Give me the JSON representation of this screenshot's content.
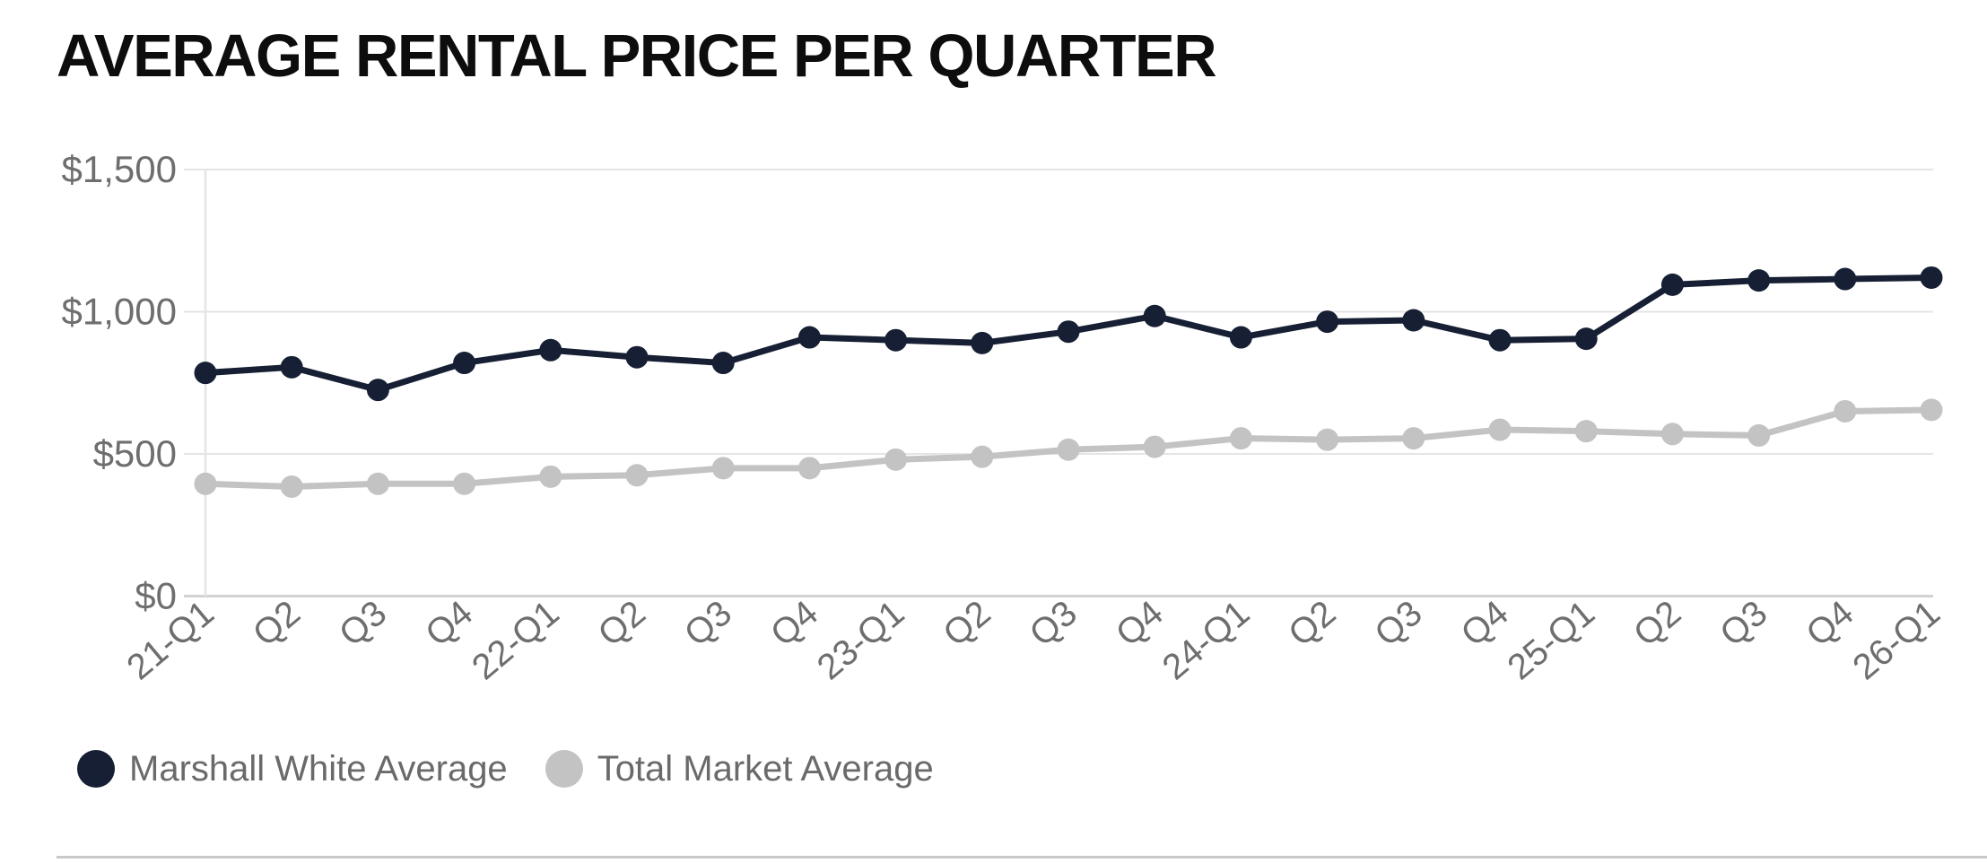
{
  "page": {
    "background": "#ffffff"
  },
  "header": {
    "title": "AVERAGE RENTAL PRICE PER QUARTER"
  },
  "chart_data": {
    "type": "line",
    "title": "AVERAGE RENTAL PRICE PER QUARTER",
    "categories": [
      "21-Q1",
      "Q2",
      "Q3",
      "Q4",
      "22-Q1",
      "Q2",
      "Q3",
      "Q4",
      "23-Q1",
      "Q2",
      "Q3",
      "Q4",
      "24-Q1",
      "Q2",
      "Q3",
      "Q4",
      "25-Q1",
      "Q2",
      "Q3",
      "Q4",
      "26-Q1"
    ],
    "series": [
      {
        "name": "Marshall White Average",
        "color": "#161f33",
        "values": [
          785,
          805,
          725,
          820,
          865,
          840,
          820,
          910,
          900,
          890,
          930,
          985,
          910,
          965,
          970,
          900,
          905,
          1095,
          1110,
          1115,
          1120
        ]
      },
      {
        "name": "Total Market Average",
        "color": "#c3c3c3",
        "values": [
          395,
          385,
          395,
          395,
          420,
          425,
          450,
          450,
          480,
          490,
          515,
          525,
          555,
          550,
          555,
          585,
          580,
          570,
          565,
          650,
          655
        ]
      }
    ],
    "xlabel": "",
    "ylabel": "",
    "ylim": [
      0,
      1500
    ],
    "yticks": [
      {
        "value": 0,
        "label": "$0"
      },
      {
        "value": 500,
        "label": "$500"
      },
      {
        "value": 1000,
        "label": "$1,000"
      },
      {
        "value": 1500,
        "label": "$1,500"
      }
    ],
    "grid": "horizontal gridlines at each y tick, single vertical line at first category",
    "legend_position": "bottom-left",
    "styles": {
      "gridline_color": "#e5e5e5",
      "zero_axis_color": "#d2d2d2",
      "tick_label_color": "#6e6e6e",
      "x_tick_rotation_deg": -40
    }
  }
}
